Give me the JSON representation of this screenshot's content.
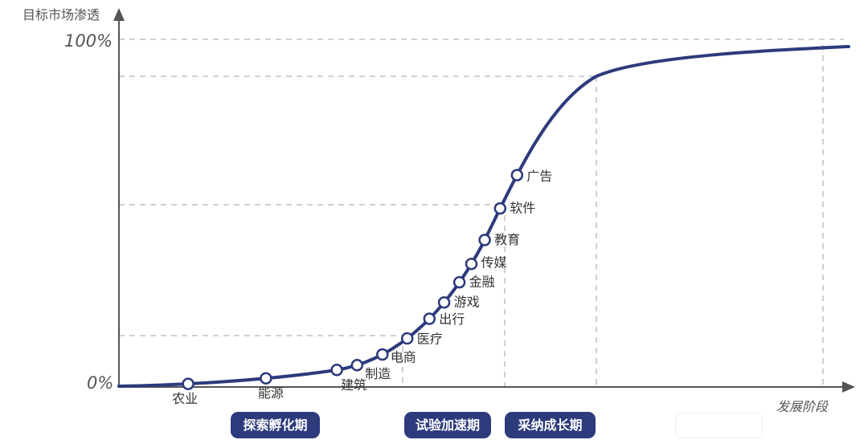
{
  "chart_data": {
    "type": "line",
    "ylabel": "目标市场渗透",
    "xlabel": "发展阶段",
    "y_ticks": [
      "100%",
      "0%"
    ],
    "points": [
      {
        "name": "农业",
        "x": 1,
        "y": 0.9
      },
      {
        "name": "能源",
        "x": 2,
        "y": 2.5
      },
      {
        "name": "建筑",
        "x": 3,
        "y": 4.9
      },
      {
        "name": "制造",
        "x": 3.3,
        "y": 6.3
      },
      {
        "name": "电商",
        "x": 3.7,
        "y": 9.3
      },
      {
        "name": "医疗",
        "x": 4.1,
        "y": 14.0
      },
      {
        "name": "出行",
        "x": 4.4,
        "y": 19.7
      },
      {
        "name": "游戏",
        "x": 4.65,
        "y": 24.4
      },
      {
        "name": "金融",
        "x": 4.9,
        "y": 30.1
      },
      {
        "name": "传媒",
        "x": 5.15,
        "y": 35.5
      },
      {
        "name": "教育",
        "x": 5.35,
        "y": 42.3
      },
      {
        "name": "软件",
        "x": 5.57,
        "y": 51.4
      },
      {
        "name": "广告",
        "x": 5.78,
        "y": 61.0
      }
    ],
    "stages": [
      "探索孵化期",
      "试验加速期",
      "采纳成长期"
    ],
    "color": "#2d3a7c"
  }
}
